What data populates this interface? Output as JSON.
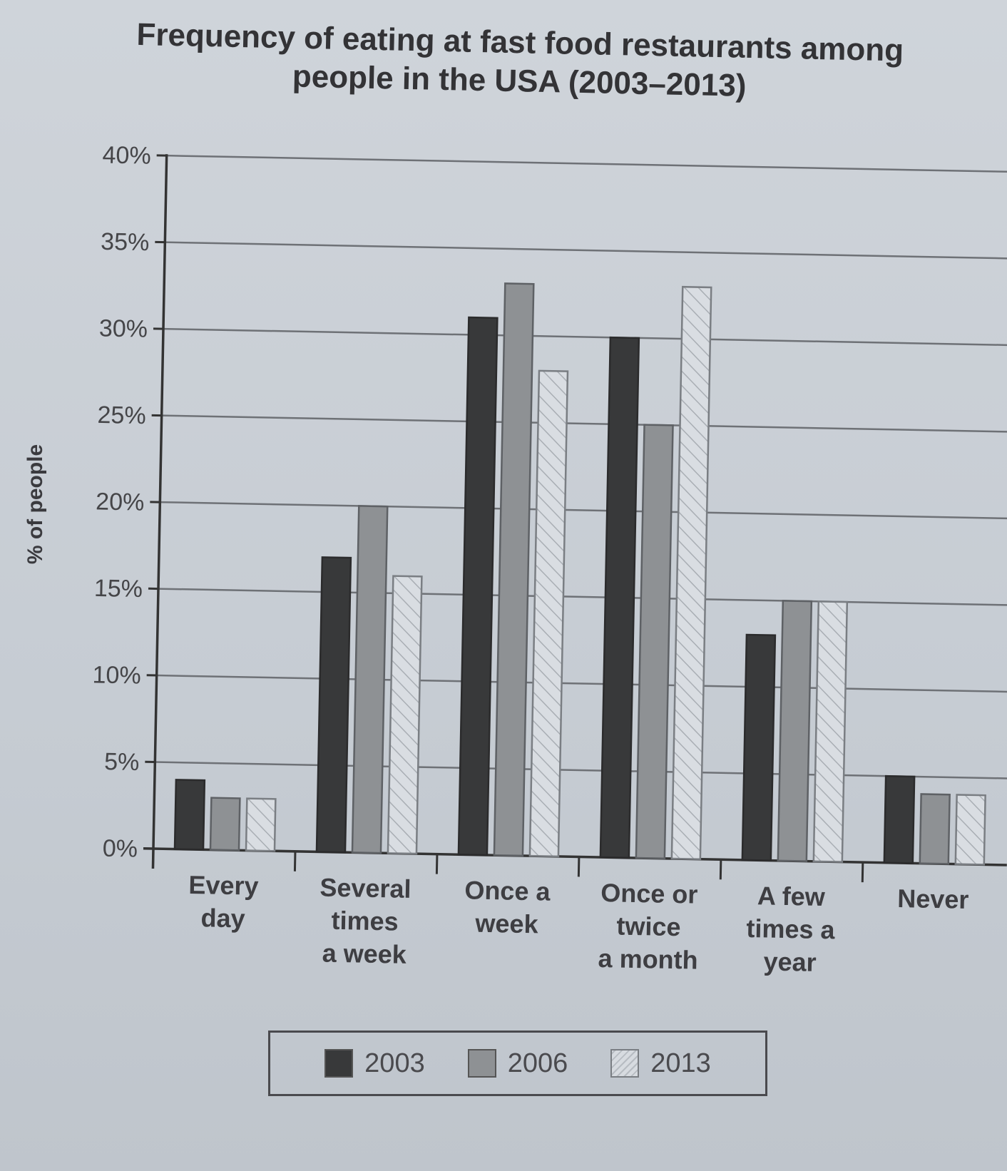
{
  "chart_data": {
    "type": "bar",
    "title": "Frequency of eating at fast food restaurants among people in the USA (2003–2013)",
    "title_lines": [
      "Frequency of eating at fast food restaurants among",
      "people in the USA (2003–2013)"
    ],
    "xlabel": "",
    "ylabel": "% of people",
    "ylim": [
      0,
      40
    ],
    "yticks": [
      "0%",
      "5%",
      "10%",
      "15%",
      "20%",
      "25%",
      "30%",
      "35%",
      "40%"
    ],
    "grid": true,
    "legend_position": "bottom",
    "categories": [
      "Every day",
      "Several times a week",
      "Once a week",
      "Once or twice a month",
      "A few times a year",
      "Never"
    ],
    "category_label_lines": [
      [
        "Every",
        "day"
      ],
      [
        "Several",
        "times",
        "a week"
      ],
      [
        "Once a",
        "week"
      ],
      [
        "Once or",
        "twice",
        "a month"
      ],
      [
        "A few",
        "times a",
        "year"
      ],
      [
        "Never"
      ]
    ],
    "series": [
      {
        "name": "2003",
        "values": [
          4,
          17,
          31,
          30,
          13,
          5
        ],
        "color": "#38393a",
        "pattern": "solid"
      },
      {
        "name": "2006",
        "values": [
          3,
          20,
          33,
          25,
          15,
          4
        ],
        "color": "#8e9194",
        "pattern": "solid"
      },
      {
        "name": "2013",
        "values": [
          3,
          16,
          28,
          33,
          15,
          4
        ],
        "color": "#d7dbe0",
        "pattern": "hatched"
      }
    ]
  },
  "legend": {
    "items": [
      {
        "label": "2003"
      },
      {
        "label": "2006"
      },
      {
        "label": "2013"
      }
    ]
  }
}
